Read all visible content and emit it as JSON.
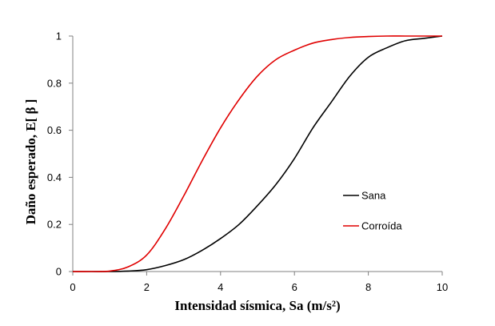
{
  "chart_data": {
    "type": "line",
    "title": "",
    "xlabel": "Intensidad sísmica, Sa  (m/s²)",
    "ylabel": "Daño esperado,  E[ β ]",
    "xlim": [
      0,
      10
    ],
    "ylim": [
      0,
      1
    ],
    "x_ticks": [
      "0",
      "2",
      "4",
      "6",
      "8",
      "10"
    ],
    "y_ticks": [
      "0",
      "0.2",
      "0.4",
      "0.6",
      "0.8",
      "1"
    ],
    "grid": false,
    "legend_position": "right",
    "series": [
      {
        "name": "Sana",
        "color": "#000000",
        "x": [
          0,
          0.5,
          1,
          1.5,
          2,
          2.5,
          3,
          3.5,
          4,
          4.5,
          5,
          5.5,
          6,
          6.5,
          7,
          7.5,
          8,
          8.5,
          9,
          9.5,
          10
        ],
        "y": [
          0,
          0,
          0,
          0.002,
          0.008,
          0.025,
          0.05,
          0.09,
          0.14,
          0.2,
          0.28,
          0.37,
          0.48,
          0.61,
          0.72,
          0.83,
          0.91,
          0.95,
          0.98,
          0.99,
          1.0
        ]
      },
      {
        "name": "Corroída",
        "color": "#e00000",
        "x": [
          0,
          0.5,
          1,
          1.5,
          2,
          2.5,
          3,
          3.5,
          4,
          4.5,
          5,
          5.5,
          6,
          6.5,
          7,
          7.5,
          8,
          8.5,
          9,
          9.5,
          10
        ],
        "y": [
          0,
          0,
          0.002,
          0.02,
          0.07,
          0.18,
          0.32,
          0.47,
          0.61,
          0.73,
          0.83,
          0.9,
          0.94,
          0.97,
          0.985,
          0.994,
          0.998,
          1.0,
          1.0,
          1.0,
          1.0
        ]
      }
    ]
  }
}
